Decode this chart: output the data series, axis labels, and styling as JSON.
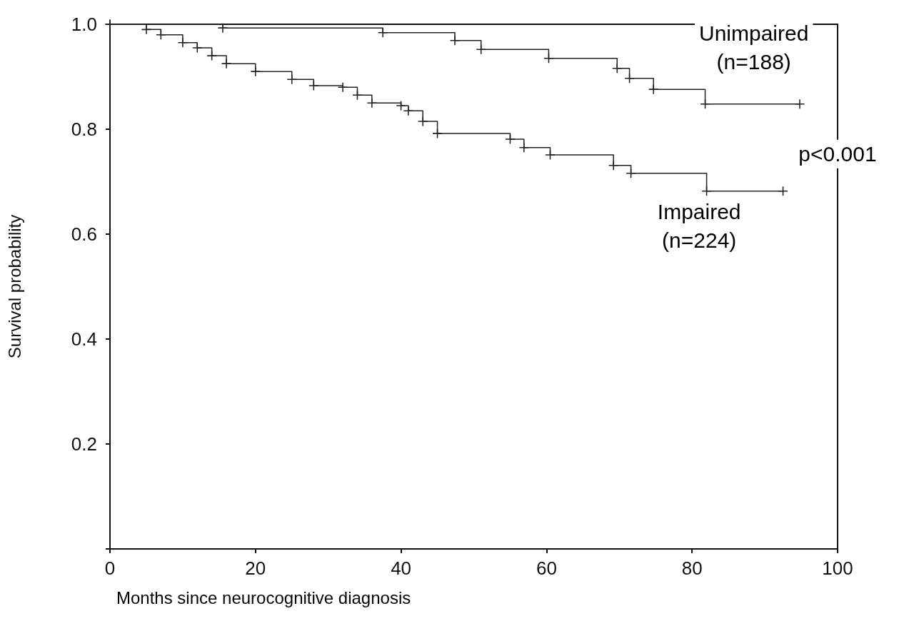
{
  "chart_data": {
    "type": "step",
    "xlabel": "Months since neurocognitive diagnosis",
    "ylabel": "Survival probability",
    "xlim": [
      0,
      100
    ],
    "xticks": [
      0,
      20,
      40,
      60,
      80,
      100
    ],
    "ylim": [
      0,
      1
    ],
    "yticks": [
      {
        "value": 0,
        "label": null
      },
      0.2,
      0.4,
      0.6,
      0.8,
      {
        "value": 1,
        "label": "1.0"
      }
    ],
    "grid": false,
    "marker": "cross",
    "line_style": "solid",
    "series": [
      {
        "color": "#222222",
        "x": [
          0,
          15.5,
          37.5,
          47.4,
          51,
          60.3,
          69.7,
          71.4,
          74.7,
          81.8,
          94.8
        ],
        "values": [
          1,
          0.993,
          0.984,
          0.969,
          0.952,
          0.935,
          0.916,
          0.897,
          0.876,
          0.848,
          0.848
        ]
      },
      {
        "color": "#222222",
        "x": [
          0,
          5,
          7,
          10,
          12,
          14,
          16,
          20,
          25,
          28,
          32,
          34,
          36,
          40,
          41,
          43,
          45,
          55,
          56.9,
          60.5,
          69.2,
          71.6,
          82,
          92.5
        ],
        "values": [
          1,
          0.99,
          0.98,
          0.965,
          0.955,
          0.94,
          0.925,
          0.91,
          0.895,
          0.883,
          0.88,
          0.865,
          0.85,
          0.845,
          0.835,
          0.815,
          0.792,
          0.781,
          0.765,
          0.751,
          0.731,
          0.716,
          0.682,
          0.682
        ]
      }
    ],
    "annotations": [
      "Unimpaired\n(n=188)",
      "Impaired\n(n=224)",
      "p<0.001"
    ]
  }
}
